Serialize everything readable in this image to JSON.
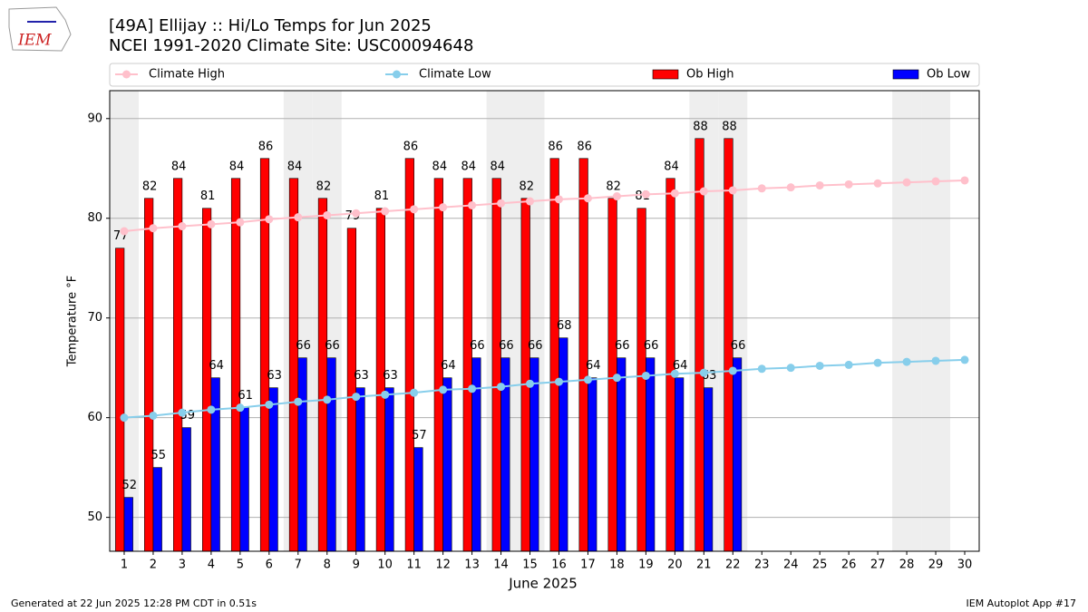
{
  "header": {
    "logo_text": "IEM"
  },
  "chart_data": {
    "type": "bar",
    "title": "[49A] Ellijay :: Hi/Lo Temps for Jun 2025",
    "subtitle": "NCEI 1991-2020 Climate Site: USC00094648",
    "x_label": "June 2025",
    "y_label": "Temperature °F",
    "x": [
      1,
      2,
      3,
      4,
      5,
      6,
      7,
      8,
      9,
      10,
      11,
      12,
      13,
      14,
      15,
      16,
      17,
      18,
      19,
      20,
      21,
      22,
      23,
      24,
      25,
      26,
      27,
      28,
      29,
      30
    ],
    "xlim": [
      0.5,
      30.5
    ],
    "xticks": [
      1,
      2,
      3,
      4,
      5,
      6,
      7,
      8,
      9,
      10,
      11,
      12,
      13,
      14,
      15,
      16,
      17,
      18,
      19,
      20,
      21,
      22,
      23,
      24,
      25,
      26,
      27,
      28,
      29,
      30
    ],
    "ylim": [
      46.6,
      92.8
    ],
    "yticks": [
      50,
      60,
      70,
      80,
      90
    ],
    "grid": true,
    "shaded_days": [
      1,
      7,
      8,
      14,
      15,
      21,
      22,
      28,
      29
    ],
    "shade_color": "#eeeeee",
    "legend": "top",
    "series": [
      {
        "name": "Climate High",
        "type": "line",
        "color": "#ffc0cb",
        "values": [
          78.7,
          79.0,
          79.2,
          79.4,
          79.6,
          79.9,
          80.1,
          80.3,
          80.5,
          80.7,
          80.9,
          81.1,
          81.3,
          81.5,
          81.7,
          81.9,
          82.0,
          82.2,
          82.4,
          82.5,
          82.7,
          82.8,
          83.0,
          83.1,
          83.3,
          83.4,
          83.5,
          83.6,
          83.7,
          83.8
        ]
      },
      {
        "name": "Climate Low",
        "type": "line",
        "color": "#87ceeb",
        "values": [
          60.0,
          60.2,
          60.5,
          60.8,
          61.0,
          61.3,
          61.6,
          61.8,
          62.1,
          62.3,
          62.5,
          62.8,
          62.9,
          63.1,
          63.4,
          63.6,
          63.8,
          64.0,
          64.2,
          64.4,
          64.5,
          64.7,
          64.9,
          65.0,
          65.2,
          65.3,
          65.5,
          65.6,
          65.7,
          65.8
        ]
      },
      {
        "name": "Ob High",
        "type": "bar",
        "color": "#ff0000",
        "values": [
          77,
          82,
          84,
          81,
          84,
          86,
          84,
          82,
          79,
          81,
          86,
          84,
          84,
          84,
          82,
          86,
          86,
          82,
          81,
          84,
          88,
          88,
          null,
          null,
          null,
          null,
          null,
          null,
          null,
          null
        ]
      },
      {
        "name": "Ob Low",
        "type": "bar",
        "color": "#0000ff",
        "values": [
          52,
          55,
          59,
          64,
          61,
          63,
          66,
          66,
          63,
          63,
          57,
          64,
          66,
          66,
          66,
          68,
          64,
          66,
          66,
          64,
          63,
          66,
          null,
          null,
          null,
          null,
          null,
          null,
          null,
          null
        ]
      }
    ],
    "footer_left": "Generated at 22 Jun 2025 12:28 PM CDT in 0.51s",
    "footer_right": "IEM Autoplot App #17"
  }
}
